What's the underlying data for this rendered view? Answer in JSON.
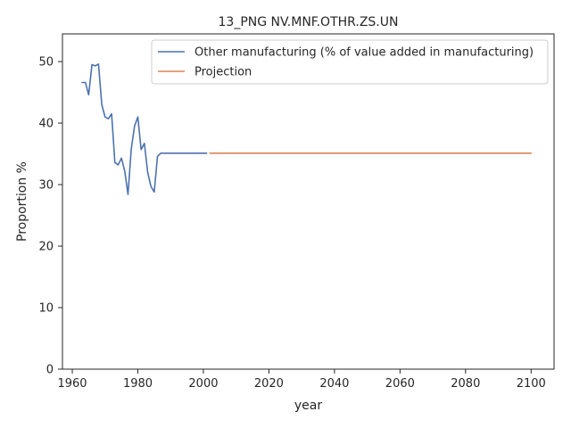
{
  "chart_data": {
    "type": "line",
    "title": "13_PNG NV.MNF.OTHR.ZS.UN",
    "xlabel": "year",
    "ylabel": "Proportion %",
    "xlim": [
      1957,
      2107
    ],
    "ylim": [
      0,
      54.5
    ],
    "xticks": [
      1960,
      1980,
      2000,
      2020,
      2040,
      2060,
      2080,
      2100
    ],
    "yticks": [
      0,
      10,
      20,
      30,
      40,
      50
    ],
    "grid": false,
    "legend_position": "top-right",
    "series": [
      {
        "name": "Other manufacturing (% of value added in manufacturing)",
        "color": "#4c72b0",
        "x": [
          1963,
          1964,
          1965,
          1966,
          1967,
          1968,
          1969,
          1970,
          1971,
          1972,
          1973,
          1974,
          1975,
          1976,
          1977,
          1978,
          1979,
          1980,
          1981,
          1982,
          1983,
          1984,
          1985,
          1986,
          1987,
          1988,
          1989,
          1990,
          1991,
          1992,
          1993,
          1994,
          1995,
          1996,
          1997,
          1998,
          1999,
          2000,
          2001
        ],
        "y": [
          46.6,
          46.6,
          44.6,
          49.5,
          49.3,
          49.6,
          43.0,
          41.0,
          40.7,
          41.5,
          33.6,
          33.2,
          34.3,
          32.2,
          28.4,
          35.8,
          39.5,
          41.0,
          35.7,
          36.7,
          32.0,
          29.7,
          28.8,
          34.6,
          35.1,
          35.1,
          35.1,
          35.1,
          35.1,
          35.1,
          35.1,
          35.1,
          35.1,
          35.1,
          35.1,
          35.1,
          35.1,
          35.1,
          35.1
        ]
      },
      {
        "name": "Projection",
        "color": "#dd8452",
        "x": [
          2002,
          2100
        ],
        "y": [
          35.1,
          35.1
        ]
      }
    ]
  }
}
